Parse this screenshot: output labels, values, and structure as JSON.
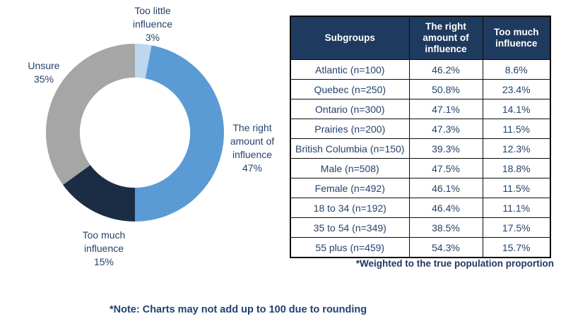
{
  "chart_data": {
    "type": "pie",
    "subtype": "donut",
    "inner_radius_ratio": 0.62,
    "start_angle_deg": 0,
    "direction": "clockwise",
    "segments": [
      {
        "label": "Too little influence",
        "value": 3,
        "display": "3%",
        "color": "#BDD7EE"
      },
      {
        "label": "The right amount of influence",
        "value": 47,
        "display": "47%",
        "color": "#5B9BD5"
      },
      {
        "label": "Too much influence",
        "value": 15,
        "display": "15%",
        "color": "#1B2D45"
      },
      {
        "label": "Unsure",
        "value": 35,
        "display": "35%",
        "color": "#A6A6A6"
      }
    ]
  },
  "donut_labels": {
    "too_little": {
      "label": "Too little influence",
      "value": "3%"
    },
    "right_amount": {
      "label": "The right amount of influence",
      "value": "47%"
    },
    "too_much": {
      "label": "Too much influence",
      "value": "15%"
    },
    "unsure": {
      "label": "Unsure",
      "value": "35%"
    }
  },
  "table": {
    "columns": [
      "Subgroups",
      "The right amount of influence",
      "Too much influence"
    ],
    "rows": [
      {
        "subgroup": "Atlantic (n=100)",
        "right_amount": "46.2%",
        "too_much": "8.6%"
      },
      {
        "subgroup": "Quebec (n=250)",
        "right_amount": "50.8%",
        "too_much": "23.4%"
      },
      {
        "subgroup": "Ontario (n=300)",
        "right_amount": "47.1%",
        "too_much": "14.1%"
      },
      {
        "subgroup": "Prairies (n=200)",
        "right_amount": "47.3%",
        "too_much": "11.5%"
      },
      {
        "subgroup": "British Columbia (n=150)",
        "right_amount": "39.3%",
        "too_much": "12.3%"
      },
      {
        "subgroup": "Male (n=508)",
        "right_amount": "47.5%",
        "too_much": "18.8%"
      },
      {
        "subgroup": "Female (n=492)",
        "right_amount": "46.1%",
        "too_much": "11.5%"
      },
      {
        "subgroup": "18 to 34 (n=192)",
        "right_amount": "46.4%",
        "too_much": "11.1%"
      },
      {
        "subgroup": "35 to 54 (n=349)",
        "right_amount": "38.5%",
        "too_much": "17.5%"
      },
      {
        "subgroup": "55 plus (n=459)",
        "right_amount": "54.3%",
        "too_much": "15.7%"
      }
    ],
    "footnote": "*Weighted to the true population proportion"
  },
  "note": "*Note: Charts may not add up to 100 due to rounding",
  "colors": {
    "header_bg": "#1F3A5F",
    "header_text": "#ffffff",
    "body_text_navy": "#24436B",
    "footnote_navy": "#1F3864",
    "note_navy": "#1F4270",
    "segment_too_little": "#BDD7EE",
    "segment_right_amount": "#5B9BD5",
    "segment_too_much": "#1B2D45",
    "segment_unsure": "#A6A6A6"
  }
}
